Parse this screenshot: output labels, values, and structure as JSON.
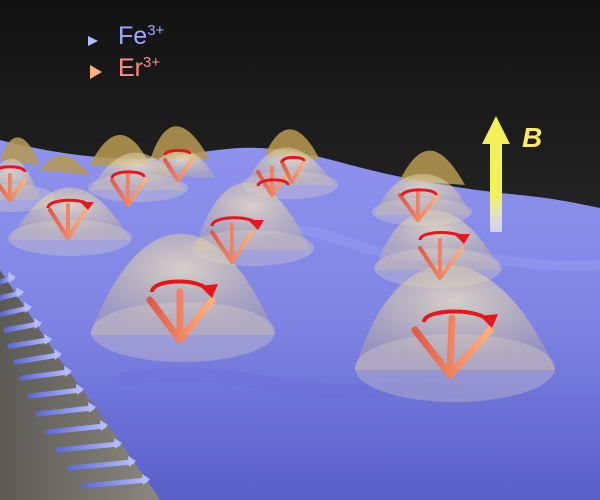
{
  "legend": {
    "fe": {
      "symbol": "Fe",
      "charge": "3+",
      "color": "#9fa8ff"
    },
    "er": {
      "symbol": "Er",
      "charge": "3+",
      "color": "#ff8f85"
    }
  },
  "field_label": "B",
  "colors": {
    "background": "#1c1c1c",
    "surface": "#8a8ff0",
    "fe_arrow": "#9aa6ff",
    "er_arrow": "#ff9a66",
    "rotation_arrow": "#e8161a",
    "peak": "#c8a96a",
    "field_arrow": "#f4f05a"
  }
}
